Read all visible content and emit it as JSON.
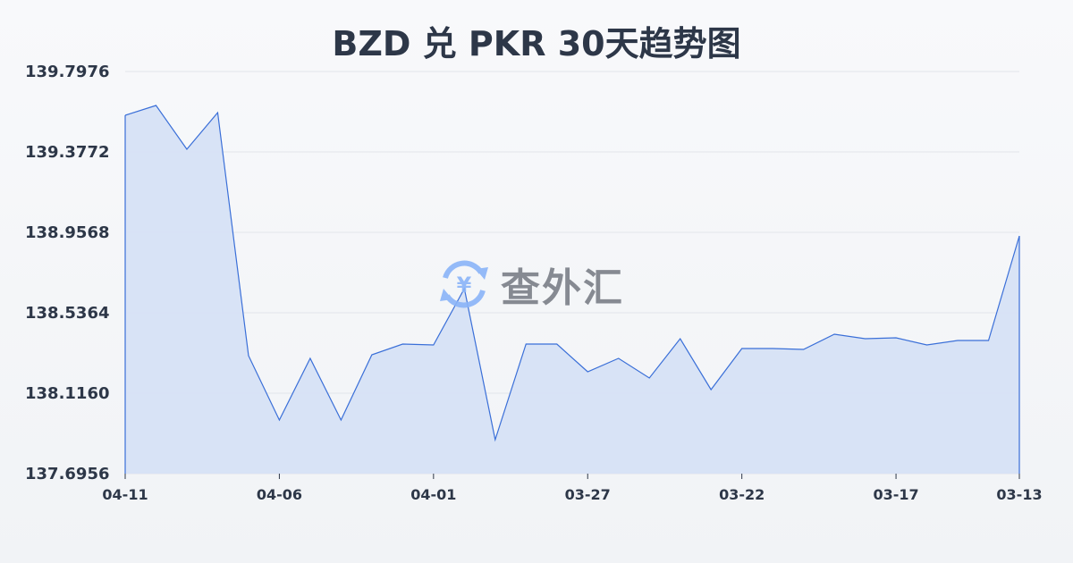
{
  "chart_data": {
    "type": "area",
    "title": "BZD 兑 PKR 30天趋势图",
    "xlabel": "",
    "ylabel": "",
    "x": [
      "04-11",
      "04-10",
      "04-09",
      "04-08",
      "04-07",
      "04-06",
      "04-05",
      "04-04",
      "04-03",
      "04-02",
      "04-01",
      "03-31",
      "03-30",
      "03-29",
      "03-28",
      "03-27",
      "03-26",
      "03-25",
      "03-24",
      "03-23",
      "03-22",
      "03-21",
      "03-20",
      "03-19",
      "03-18",
      "03-17",
      "03-16",
      "03-15",
      "03-14",
      "03-13"
    ],
    "x_tick_labels": [
      "04-11",
      "04-06",
      "04-01",
      "03-27",
      "03-22",
      "03-17",
      "03-13"
    ],
    "values": [
      139.5687,
      139.6201,
      139.3912,
      139.5827,
      138.3122,
      137.9759,
      138.2982,
      137.9759,
      138.3168,
      138.3729,
      138.3682,
      138.6625,
      137.8731,
      138.3729,
      138.3729,
      138.2281,
      138.2982,
      138.1954,
      138.4009,
      138.1347,
      138.3495,
      138.3495,
      138.3448,
      138.4243,
      138.4009,
      138.4056,
      138.3682,
      138.3916,
      138.3916,
      138.9381
    ],
    "y_tick_labels": [
      "139.7976",
      "139.3772",
      "138.9568",
      "138.5364",
      "138.1160",
      "137.6956"
    ],
    "ylim": [
      137.6956,
      139.7976
    ],
    "grid": true,
    "legend": "none",
    "colors": {
      "line": "#3a6fd8",
      "fill": "#d6e1f6",
      "grid": "#e2e5ea",
      "text": "#2d3748"
    }
  },
  "watermark": {
    "text": "查外汇",
    "icon": "yen-exchange-icon",
    "icon_color": "#8ab4f8"
  }
}
